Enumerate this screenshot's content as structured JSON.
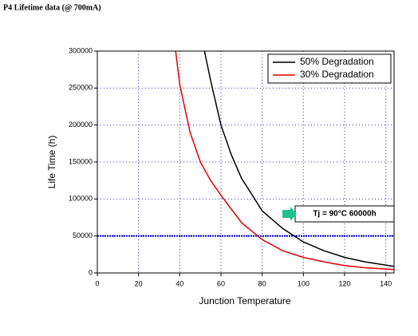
{
  "chart_data": {
    "type": "line",
    "title": "P4 Lifetime data  (@ 700mA)",
    "x_label": "Junction Temperature",
    "y_label": "Life Time (h)",
    "xlim": [
      0,
      144
    ],
    "xticks": [
      0,
      20,
      40,
      60,
      80,
      100,
      120,
      140
    ],
    "ylim": [
      0,
      300000
    ],
    "yticks": [
      0,
      50000,
      100000,
      150000,
      200000,
      250000,
      300000
    ],
    "grid": true,
    "legend": "top-right",
    "series": [
      {
        "name": "50% Degradation",
        "color": "#000000",
        "x": [
          52,
          55,
          60,
          65,
          70,
          80,
          90,
          100,
          110,
          120,
          130,
          144
        ],
        "values": [
          300000,
          260000,
          200000,
          160000,
          128000,
          84000,
          60000,
          42000,
          30000,
          21000,
          15000,
          9000
        ]
      },
      {
        "name": "30% Degradation",
        "color": "#e00000",
        "x": [
          38,
          40,
          45,
          50,
          55,
          60,
          70,
          80,
          90,
          100,
          110,
          120,
          130,
          144
        ],
        "values": [
          300000,
          255000,
          190000,
          150000,
          125000,
          105000,
          68000,
          45000,
          30000,
          21000,
          15000,
          10000,
          7000,
          4500
        ]
      }
    ],
    "reference_line": {
      "value": 50000,
      "color": "#0000cc"
    },
    "annotation": "Tj = 90°C 60000h"
  }
}
